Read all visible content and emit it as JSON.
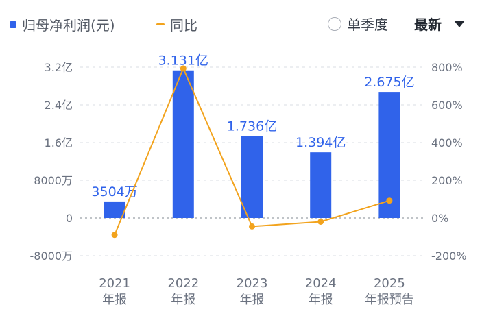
{
  "legend": {
    "net_profit_label": "归母净利润(元)",
    "yoy_label": "同比"
  },
  "controls": {
    "quarter_label": "单季度",
    "sort_label": "最新"
  },
  "colors": {
    "bar": "#3063ea",
    "line": "#f2a31d",
    "grid": "#d9dde3",
    "zero_line": "#9aa0a8"
  },
  "chart_data": {
    "type": "bar",
    "categories": [
      [
        "2021",
        "年报"
      ],
      [
        "2022",
        "年报"
      ],
      [
        "2023",
        "年报"
      ],
      [
        "2024",
        "年报"
      ],
      [
        "2025",
        "年报预告"
      ]
    ],
    "series": [
      {
        "name": "归母净利润(元)",
        "type": "bar",
        "axis": "left",
        "values": [
          35040000,
          313100000,
          173600000,
          139400000,
          267500000
        ],
        "labels": [
          "3504万",
          "3.131亿",
          "1.736亿",
          "1.394亿",
          "2.675亿"
        ]
      },
      {
        "name": "同比",
        "type": "line",
        "axis": "right",
        "values": [
          -90,
          793,
          -45,
          -20,
          92
        ]
      }
    ],
    "left_axis": {
      "ylim": [
        -80000000,
        320000000
      ],
      "ticks": [
        320000000,
        240000000,
        160000000,
        80000000,
        0,
        -80000000
      ],
      "tick_labels": [
        "3.2亿",
        "2.4亿",
        "1.6亿",
        "8000万",
        "0",
        "-8000万"
      ]
    },
    "right_axis": {
      "ylim": [
        -200,
        800
      ],
      "ticks": [
        800,
        600,
        400,
        200,
        0,
        -200
      ],
      "tick_labels": [
        "800%",
        "600%",
        "400%",
        "200%",
        "0%",
        "-200%"
      ]
    },
    "grid": true,
    "legend_position": "top-left"
  }
}
